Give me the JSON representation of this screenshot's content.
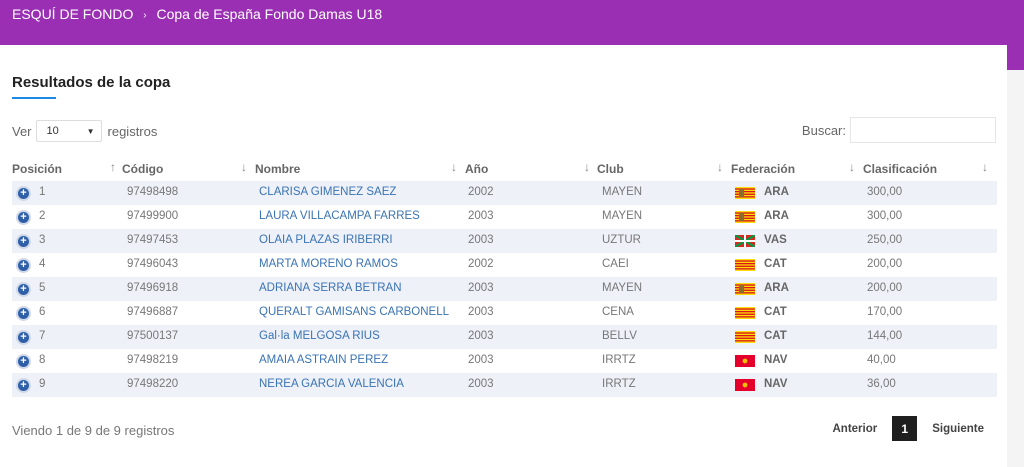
{
  "breadcrumb": {
    "section": "ESQUÍ DE FONDO",
    "separator": "›",
    "current": "Copa de España Fondo Damas U18"
  },
  "title": "Resultados de la copa",
  "length": {
    "label_before": "Ver",
    "value": "10",
    "label_after": "registros"
  },
  "search": {
    "label": "Buscar:",
    "value": ""
  },
  "columns": [
    "Posición",
    "Código",
    "Nombre",
    "Año",
    "Club",
    "Federación",
    "Clasificación"
  ],
  "rows": [
    {
      "pos": "1",
      "code": "97498498",
      "name": "CLARISA GIMENEZ SAEZ",
      "year": "2002",
      "club": "MAYEN",
      "fed": "ARA",
      "score": "300,00"
    },
    {
      "pos": "2",
      "code": "97499900",
      "name": "LAURA VILLACAMPA FARRES",
      "year": "2003",
      "club": "MAYEN",
      "fed": "ARA",
      "score": "300,00"
    },
    {
      "pos": "3",
      "code": "97497453",
      "name": "OLAIA PLAZAS IRIBERRI",
      "year": "2003",
      "club": "UZTUR",
      "fed": "VAS",
      "score": "250,00"
    },
    {
      "pos": "4",
      "code": "97496043",
      "name": "MARTA MORENO RAMOS",
      "year": "2002",
      "club": "CAEI",
      "fed": "CAT",
      "score": "200,00"
    },
    {
      "pos": "5",
      "code": "97496918",
      "name": "ADRIANA SERRA BETRAN",
      "year": "2003",
      "club": "MAYEN",
      "fed": "ARA",
      "score": "200,00"
    },
    {
      "pos": "6",
      "code": "97496887",
      "name": "QUERALT GAMISANS CARBONELL",
      "year": "2003",
      "club": "CENA",
      "fed": "CAT",
      "score": "170,00"
    },
    {
      "pos": "7",
      "code": "97500137",
      "name": "Gal·la MELGOSA RIUS",
      "year": "2003",
      "club": "BELLV",
      "fed": "CAT",
      "score": "144,00"
    },
    {
      "pos": "8",
      "code": "97498219",
      "name": "AMAIA ASTRAIN PEREZ",
      "year": "2003",
      "club": "IRRTZ",
      "fed": "NAV",
      "score": "40,00"
    },
    {
      "pos": "9",
      "code": "97498220",
      "name": "NEREA GARCIA VALENCIA",
      "year": "2003",
      "club": "IRRTZ",
      "fed": "NAV",
      "score": "36,00"
    }
  ],
  "info": "Viendo 1 de 9 de 9 registros",
  "pager": {
    "prev": "Anterior",
    "current": "1",
    "next": "Siguiente"
  },
  "icons": {
    "expand": "plus-circle-icon",
    "sort": "sort-arrow-icon",
    "flag": "federation-flag-icon"
  },
  "colors": {
    "header": "#9b2fb4",
    "accent": "#1e88e5",
    "link": "#3a73b4"
  }
}
